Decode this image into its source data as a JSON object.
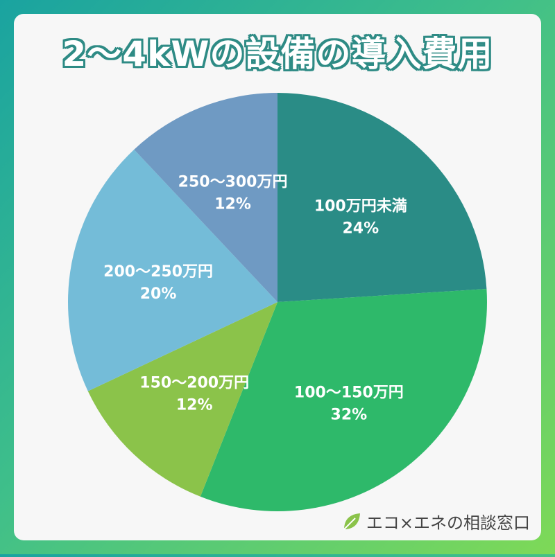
{
  "title": "2〜4kWの設備の導入費用",
  "brand": {
    "text": "エコ×エネの相談窓口",
    "icon": "leaf-icon"
  },
  "chart_data": {
    "type": "pie",
    "title": "2〜4kWの設備の導入費用",
    "start_angle_deg": 0,
    "direction": "clockwise",
    "slices": [
      {
        "label": "100万円未満",
        "value": 24,
        "display": "24%",
        "color": "#2a8c86"
      },
      {
        "label": "100〜150万円",
        "value": 32,
        "display": "32%",
        "color": "#2eb96a"
      },
      {
        "label": "150〜200万円",
        "value": 12,
        "display": "12%",
        "color": "#8bc34a"
      },
      {
        "label": "200〜250万円",
        "value": 20,
        "display": "20%",
        "color": "#74bcd8"
      },
      {
        "label": "250〜300万円",
        "value": 12,
        "display": "12%",
        "color": "#6f9ac3"
      }
    ]
  }
}
